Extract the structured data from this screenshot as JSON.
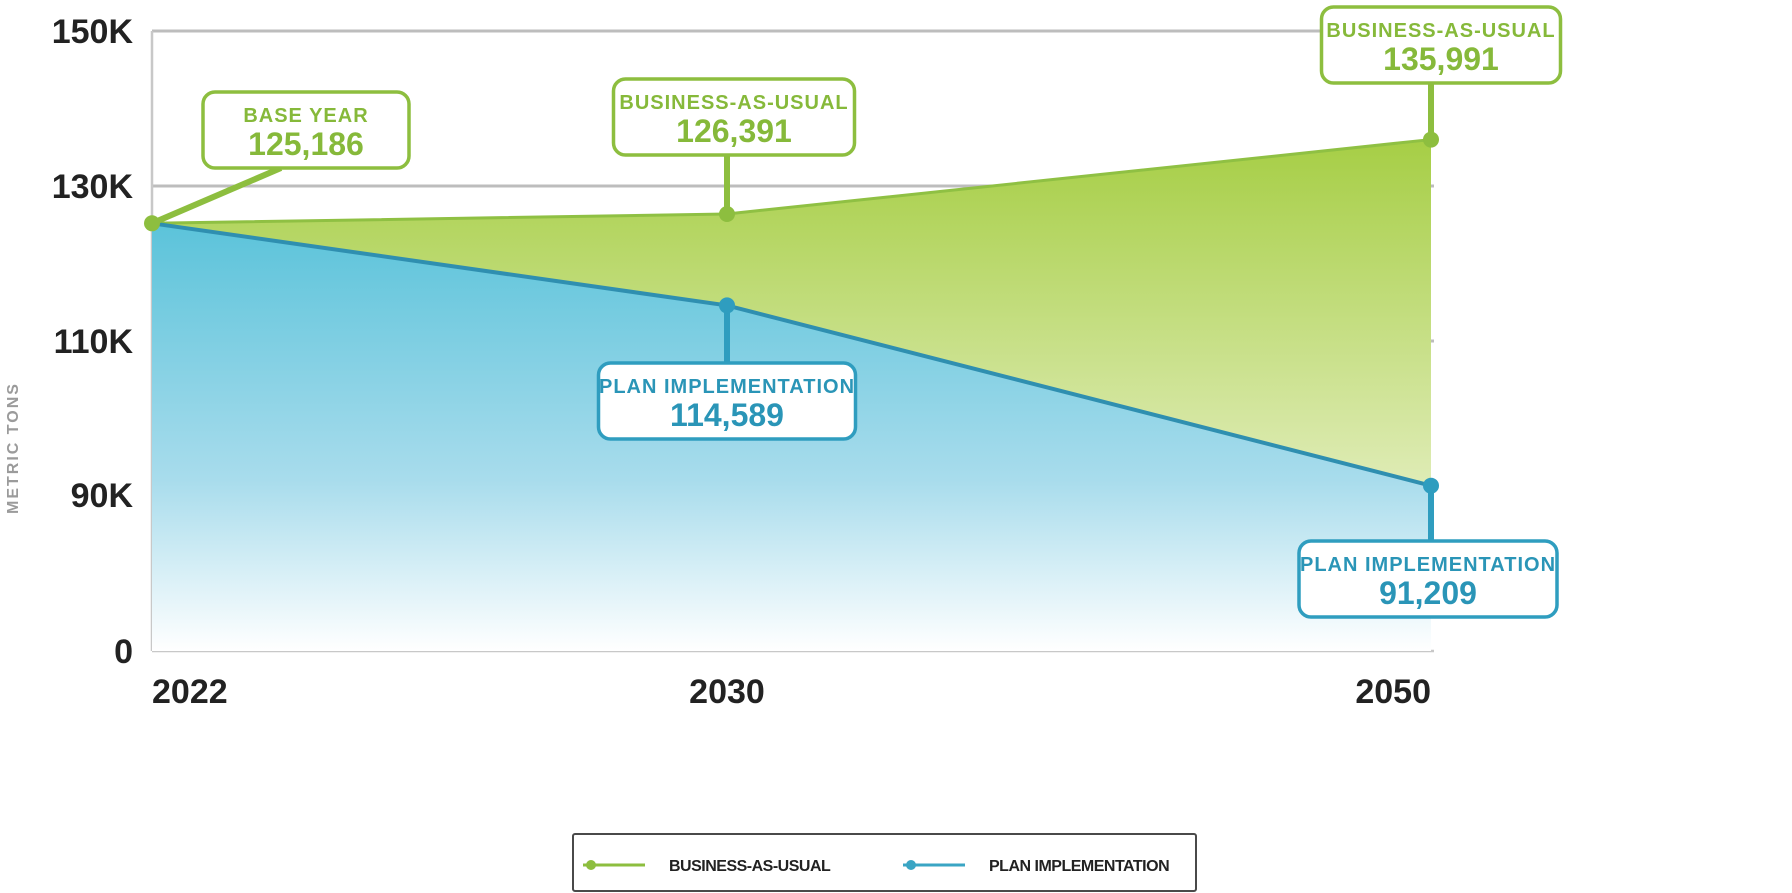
{
  "chart_data": {
    "type": "area",
    "ylabel": "METRIC TONS",
    "xlabel": "",
    "x": [
      "2022",
      "2030",
      "2050"
    ],
    "ytick_labels": [
      "0",
      "90K",
      "110K",
      "130K",
      "150K"
    ],
    "ytick_values": [
      0,
      90000,
      110000,
      130000,
      150000
    ],
    "series": [
      {
        "name": "BUSINESS-AS-USUAL",
        "values": [
          125186,
          126391,
          135991
        ],
        "color": "#8dbe3f"
      },
      {
        "name": "PLAN IMPLEMENTATION",
        "values": [
          125186,
          114589,
          91209
        ],
        "color": "#3aa5c4"
      }
    ],
    "annotations": [
      {
        "title": "BASE YEAR",
        "value": "125,186",
        "x": "2022",
        "series": "BUSINESS-AS-USUAL"
      },
      {
        "title": "BUSINESS-AS-USUAL",
        "value": "126,391",
        "x": "2030",
        "series": "BUSINESS-AS-USUAL"
      },
      {
        "title": "BUSINESS-AS-USUAL",
        "value": "135,991",
        "x": "2050",
        "series": "BUSINESS-AS-USUAL"
      },
      {
        "title": "PLAN IMPLEMENTATION",
        "value": "114,589",
        "x": "2030",
        "series": "PLAN IMPLEMENTATION"
      },
      {
        "title": "PLAN IMPLEMENTATION",
        "value": "91,209",
        "x": "2050",
        "series": "PLAN IMPLEMENTATION"
      }
    ],
    "legend": {
      "placement": "bottom-center",
      "entries": [
        "BUSINESS-AS-USUAL",
        "PLAN IMPLEMENTATION"
      ]
    },
    "grid": true
  }
}
